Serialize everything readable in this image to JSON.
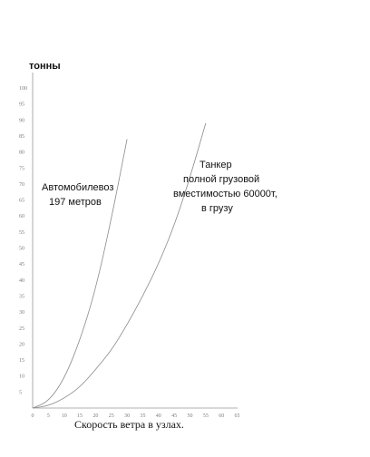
{
  "chart_data": {
    "type": "line",
    "ylabel": "тонны",
    "xlabel": "Скорость ветра в узлах.",
    "xlim": [
      0,
      65
    ],
    "ylim": [
      0,
      100
    ],
    "xticks": [
      0,
      5,
      10,
      15,
      20,
      25,
      30,
      35,
      40,
      45,
      50,
      55,
      60,
      65
    ],
    "yticks": [
      5,
      10,
      15,
      20,
      25,
      30,
      35,
      40,
      45,
      50,
      55,
      60,
      65,
      70,
      75,
      80,
      85,
      90,
      95,
      100
    ],
    "grid": false,
    "series": [
      {
        "name_lines": [
          "Автомобилевоз",
          "197 метров"
        ],
        "x": [
          0,
          5,
          10,
          15,
          20,
          25,
          30
        ],
        "y": [
          0,
          2,
          9,
          21,
          37,
          59,
          84
        ]
      },
      {
        "name_lines": [
          "Танкер",
          "полной грузовой",
          "вместимостью 60000т,",
          "в грузу"
        ],
        "x": [
          0,
          5,
          10,
          15,
          20,
          25,
          30,
          35,
          40,
          45,
          50,
          55
        ],
        "y": [
          0,
          0.7,
          3,
          6.5,
          12,
          18,
          26,
          35,
          45,
          57,
          72,
          89
        ]
      }
    ]
  }
}
